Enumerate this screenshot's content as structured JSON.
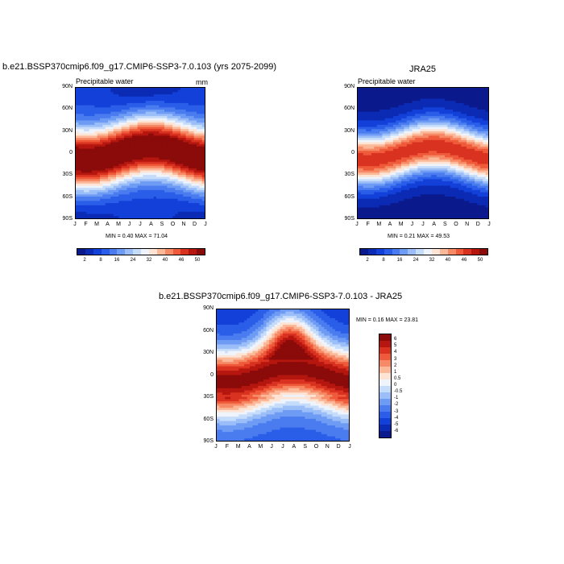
{
  "panels": {
    "model": {
      "title": "b.e21.BSSP370cmip6.f09_g17.CMIP6-SSP3-7.0.103 (yrs 2075-2099)",
      "subtitle": "Precipitable water",
      "units": "mm",
      "minmax": "MIN =   0.40 MAX =  71.04"
    },
    "obs": {
      "title": "JRA25",
      "subtitle": "Precipitable water",
      "minmax": "MIN =   0.21 MAX =  49.53"
    },
    "diff": {
      "title": "b.e21.BSSP370cmip6.f09_g17.CMIP6-SSP3-7.0.103 - JRA25",
      "minmax": "MIN =   0.16 MAX =  23.81"
    }
  },
  "chart_data": [
    {
      "type": "heatmap",
      "title": "b.e21.BSSP370cmip6.f09_g17.CMIP6-SSP3-7.0.103 (yrs 2075-2099)",
      "subtitle": "Precipitable water",
      "units": "mm",
      "x_ticks": [
        "J",
        "F",
        "M",
        "A",
        "M",
        "J",
        "J",
        "A",
        "S",
        "O",
        "N",
        "D",
        "J"
      ],
      "y_ticks": [
        "90N",
        "60N",
        "30N",
        "0",
        "30S",
        "60S",
        "90S"
      ],
      "ylim": [
        -90,
        90
      ],
      "levels": [
        2,
        4,
        8,
        12,
        16,
        20,
        24,
        28,
        32,
        36,
        40,
        44,
        46,
        48,
        50
      ],
      "colorbar_labels": [
        "2",
        "8",
        "16",
        "24",
        "32",
        "40",
        "46",
        "50"
      ],
      "min": 0.4,
      "max": 71.04,
      "colors": [
        "#0a1a8c",
        "#0b2bb5",
        "#1240d8",
        "#2a5ee8",
        "#4a7cf0",
        "#6e9bf4",
        "#9bbef8",
        "#c6dcfb",
        "#eef3fc",
        "#fde4d4",
        "#fbb99a",
        "#f78a66",
        "#ee5a3a",
        "#d93220",
        "#b5160f",
        "#8b0a0a"
      ]
    },
    {
      "type": "heatmap",
      "title": "JRA25",
      "subtitle": "Precipitable water",
      "x_ticks": [
        "J",
        "F",
        "M",
        "A",
        "M",
        "J",
        "J",
        "A",
        "S",
        "O",
        "N",
        "D",
        "J"
      ],
      "y_ticks": [
        "90N",
        "60N",
        "30N",
        "0",
        "30S",
        "60S",
        "90S"
      ],
      "ylim": [
        -90,
        90
      ],
      "levels": [
        2,
        4,
        8,
        12,
        16,
        20,
        24,
        28,
        32,
        36,
        40,
        44,
        46,
        48,
        50
      ],
      "colorbar_labels": [
        "2",
        "8",
        "16",
        "24",
        "32",
        "40",
        "46",
        "50"
      ],
      "min": 0.21,
      "max": 49.53
    },
    {
      "type": "heatmap",
      "title": "b.e21.BSSP370cmip6.f09_g17.CMIP6-SSP3-7.0.103 - JRA25",
      "x_ticks": [
        "J",
        "F",
        "M",
        "A",
        "M",
        "J",
        "J",
        "A",
        "S",
        "O",
        "N",
        "D",
        "J"
      ],
      "y_ticks": [
        "90N",
        "60N",
        "30N",
        "0",
        "30S",
        "60S",
        "90S"
      ],
      "ylim": [
        -90,
        90
      ],
      "levels": [
        -6,
        -5,
        -4,
        -3,
        -2,
        -1,
        -0.5,
        0,
        0.5,
        1,
        2,
        3,
        4,
        5,
        6
      ],
      "colorbar_labels": [
        "6",
        "5",
        "4",
        "3",
        "2",
        "1",
        "0.5",
        "0",
        "-0.5",
        "-1",
        "-2",
        "-3",
        "-4",
        "-5",
        "-6"
      ],
      "min": 0.16,
      "max": 23.81,
      "colors": [
        "#0a1a8c",
        "#0b2bb5",
        "#1240d8",
        "#2a5ee8",
        "#4a7cf0",
        "#6e9bf4",
        "#9bbef8",
        "#c6dcfb",
        "#eef3fc",
        "#fde4d4",
        "#fbb99a",
        "#f78a66",
        "#ee5a3a",
        "#d93220",
        "#b5160f",
        "#8b0a0a"
      ]
    }
  ]
}
